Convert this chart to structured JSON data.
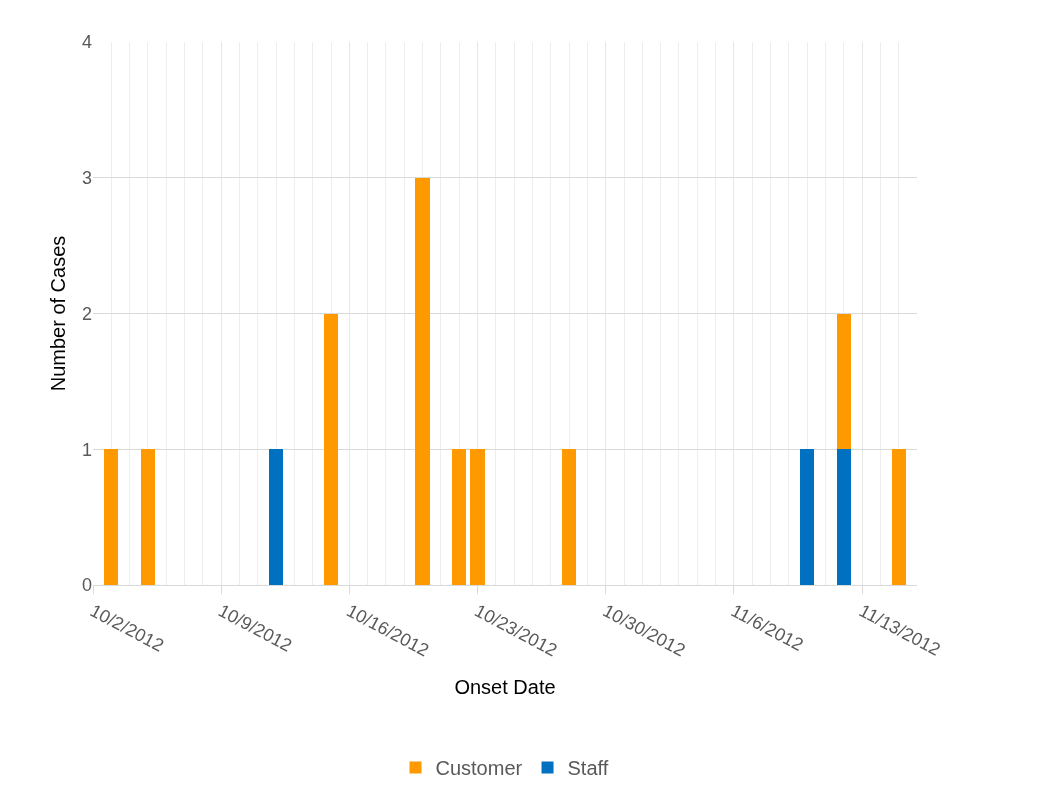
{
  "chart_data": {
    "type": "bar",
    "stacked": true,
    "xlabel": "Onset Date",
    "ylabel": "Number of Cases",
    "xlim": [
      "2012-10-02",
      "2012-11-16"
    ],
    "xticks": [
      {
        "value": "2012-10-02",
        "label": "10/2/2012"
      },
      {
        "value": "2012-10-09",
        "label": "10/9/2012"
      },
      {
        "value": "2012-10-16",
        "label": "10/16/2012"
      },
      {
        "value": "2012-10-23",
        "label": "10/23/2012"
      },
      {
        "value": "2012-10-30",
        "label": "10/30/2012"
      },
      {
        "value": "2012-11-06",
        "label": "11/6/2012"
      },
      {
        "value": "2012-11-13",
        "label": "11/13/2012"
      }
    ],
    "ylim": [
      0,
      4
    ],
    "yticks": [
      0,
      1,
      2,
      3,
      4
    ],
    "grid": true,
    "legend": "bottom",
    "x": [
      "2012-10-03",
      "2012-10-05",
      "2012-10-12",
      "2012-10-15",
      "2012-10-20",
      "2012-10-22",
      "2012-10-23",
      "2012-10-28",
      "2012-11-10",
      "2012-11-12",
      "2012-11-15"
    ],
    "series": [
      {
        "name": "Staff",
        "color": "#0070c0",
        "values": [
          null,
          null,
          1,
          null,
          null,
          null,
          null,
          null,
          1,
          1,
          null
        ]
      },
      {
        "name": "Customer",
        "color": "#ff9900",
        "values": [
          1,
          1,
          null,
          2,
          3,
          1,
          1,
          1,
          null,
          1,
          1
        ]
      }
    ]
  }
}
